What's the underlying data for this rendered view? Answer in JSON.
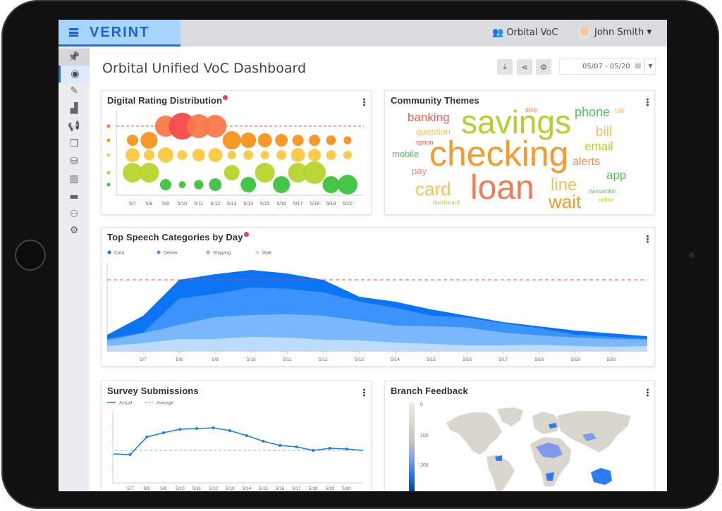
{
  "header": {
    "brand": "VERINT",
    "workspace": "Orbital VoC",
    "user": "John Smith",
    "workspace_icon": "people-icon",
    "user_icon": "avatar"
  },
  "sidebar": {
    "items": [
      {
        "name": "pin",
        "icon": "pin-icon",
        "glyph": "📌"
      },
      {
        "name": "dashboard",
        "icon": "gauge-icon",
        "glyph": "◉",
        "active": true
      },
      {
        "name": "edit",
        "icon": "pencil-icon",
        "glyph": "✎"
      },
      {
        "name": "analytics",
        "icon": "chart-icon",
        "glyph": "▟"
      },
      {
        "name": "announcements",
        "icon": "megaphone-icon",
        "glyph": "📢"
      },
      {
        "name": "integrations",
        "icon": "blocks-icon",
        "glyph": "❐"
      },
      {
        "name": "data",
        "icon": "database-icon",
        "glyph": "⛁"
      },
      {
        "name": "segments",
        "icon": "bars-people-icon",
        "glyph": "▥"
      },
      {
        "name": "files",
        "icon": "folder-icon",
        "glyph": "▬"
      },
      {
        "name": "users",
        "icon": "user-group-icon",
        "glyph": "⚇"
      },
      {
        "name": "settings",
        "icon": "gears-icon",
        "glyph": "⚙"
      }
    ]
  },
  "page": {
    "title": "Orbital Unified VoC Dashboard",
    "date_range": "05/07 - 05/20",
    "toolbar": [
      {
        "name": "download",
        "icon": "download-icon",
        "glyph": "⤓"
      },
      {
        "name": "share",
        "icon": "share-icon",
        "glyph": "⋖"
      },
      {
        "name": "settings",
        "icon": "gear-icon",
        "glyph": "⚙"
      }
    ]
  },
  "colors": {
    "accent": "#1a73e8",
    "threshold": "#f04a4a"
  },
  "cards": {
    "rating": {
      "title": "Digital Rating Distribution"
    },
    "themes": {
      "title": "Community Themes"
    },
    "speech": {
      "title": "Top Speech Categories by Day"
    },
    "survey": {
      "title": "Survey Submissions"
    },
    "branch": {
      "title": "Branch Feedback"
    }
  },
  "chart_data": [
    {
      "type": "scatter",
      "name": "rating-bubbles",
      "categories": [
        "5/7",
        "5/8",
        "5/9",
        "5/10",
        "5/11",
        "5/12",
        "5/13",
        "5/14",
        "5/15",
        "5/16",
        "5/17",
        "5/18",
        "5/19",
        "5/20"
      ],
      "rows": [
        {
          "rating": 5,
          "color": "#f8794a",
          "values": [
            0,
            0,
            56,
            90,
            72,
            64,
            0,
            0,
            0,
            0,
            0,
            0,
            0,
            0
          ]
        },
        {
          "rating": 4,
          "color": "#f7941d",
          "values": [
            16,
            36,
            0,
            0,
            0,
            0,
            42,
            30,
            25,
            20,
            16,
            16,
            12,
            8
          ]
        },
        {
          "rating": 3,
          "color": "#fdc840",
          "values": [
            25,
            14,
            30,
            12,
            20,
            25,
            9,
            12,
            9,
            12,
            25,
            20,
            12,
            9
          ]
        },
        {
          "rating": 2,
          "color": "#b7d42c",
          "values": [
            49,
            49,
            0,
            0,
            0,
            0,
            30,
            0,
            49,
            0,
            49,
            64,
            0,
            0
          ]
        },
        {
          "rating": 1,
          "color": "#3cc23f",
          "values": [
            0,
            0,
            16,
            6,
            11,
            20,
            0,
            30,
            0,
            36,
            0,
            0,
            36,
            49
          ]
        }
      ],
      "threshold_rating": 5
    },
    {
      "type": "area",
      "name": "speech-categories",
      "stacked": true,
      "x": [
        "5/6",
        "5/7",
        "5/8",
        "5/9",
        "5/10",
        "5/11",
        "5/12",
        "5/13",
        "5/14",
        "5/15",
        "5/16",
        "5/17",
        "5/18",
        "5/19",
        "5/20",
        "5/21"
      ],
      "tick_labels": [
        "5/7",
        "5/8",
        "5/9",
        "5/10",
        "5/11",
        "5/12",
        "5/13",
        "5/14",
        "5/15",
        "5/16",
        "5/17",
        "5/18",
        "5/19",
        "5/20"
      ],
      "series": [
        {
          "name": "Wait",
          "color": "#bcdcfd",
          "values": [
            6,
            10,
            16,
            16,
            19,
            18,
            15,
            14,
            11,
            9,
            7,
            7,
            8,
            6,
            5,
            6
          ]
        },
        {
          "name": "Shipping",
          "color": "#7ab8fb",
          "values": [
            8,
            14,
            20,
            31,
            31,
            33,
            34,
            28,
            24,
            25,
            25,
            18,
            13,
            12,
            11,
            9
          ]
        },
        {
          "name": "Deliver",
          "color": "#3a94fb",
          "values": [
            2,
            1,
            37,
            33,
            39,
            36,
            33,
            27,
            25,
            15,
            14,
            13,
            10,
            4,
            3,
            1
          ]
        },
        {
          "name": "Card",
          "color": "#0a74f5",
          "values": [
            6,
            24,
            27,
            28,
            25,
            22,
            18,
            7,
            9,
            9,
            3,
            2,
            3,
            6,
            5,
            4
          ]
        }
      ],
      "legend_order": [
        "Card",
        "Deliver",
        "Shipping",
        "Wait"
      ],
      "threshold": 100,
      "ylim": [
        0,
        125
      ],
      "legend": "top-left"
    },
    {
      "type": "line",
      "name": "survey-submissions",
      "x": [
        "5/6",
        "5/7",
        "5/8",
        "5/9",
        "5/10",
        "5/11",
        "5/12",
        "5/13",
        "5/14",
        "5/15",
        "5/16",
        "5/17",
        "5/18",
        "5/19",
        "5/20",
        "5/21"
      ],
      "tick_labels": [
        "5/7",
        "5/8",
        "5/9",
        "5/10",
        "5/11",
        "5/12",
        "5/13",
        "5/14",
        "5/15",
        "5/16",
        "5/17",
        "5/18",
        "5/19",
        "5/20"
      ],
      "series": [
        {
          "name": "Actual",
          "color": "#1a7cf5",
          "values": [
            20.5,
            20,
            32.5,
            35.5,
            38,
            38.5,
            39,
            37,
            33.5,
            29.5,
            26.5,
            25.5,
            23,
            24.5,
            24,
            23
          ]
        }
      ],
      "average": {
        "name": "Average",
        "value": 23,
        "color": "#7ab8fb"
      },
      "ylim": [
        0,
        50
      ],
      "grid": true,
      "legend": "top-left"
    },
    {
      "type": "heatmap",
      "name": "branch-feedback-map",
      "scale_labels": [
        "0",
        "100",
        "200"
      ],
      "scale_colors": [
        "#efeee6",
        "#c9c8c0",
        "#8fa6e6",
        "#2a7cf2",
        "#0c3f8f"
      ]
    }
  ],
  "word_cloud": [
    {
      "text": "banking",
      "color": "#f25b50"
    },
    {
      "text": "time",
      "color": "#f58a6e"
    },
    {
      "text": "phone",
      "color": "#52c25a"
    },
    {
      "text": "talk",
      "color": "#f9c05a"
    },
    {
      "text": "question",
      "color": "#f9c05a"
    },
    {
      "text": "savings",
      "color": "#b5cf2c"
    },
    {
      "text": "bill",
      "color": "#f9c05a"
    },
    {
      "text": "option",
      "color": "#f25b50"
    },
    {
      "text": "mobile",
      "color": "#52c25a"
    },
    {
      "text": "alerts",
      "color": "#f58a4e"
    },
    {
      "text": "email",
      "color": "#b5cf2c"
    },
    {
      "text": "checking",
      "color": "#f79a2e"
    },
    {
      "text": "pay",
      "color": "#f58a6e"
    },
    {
      "text": "app",
      "color": "#52c25a"
    },
    {
      "text": "card",
      "color": "#f9c05a"
    },
    {
      "text": "loan",
      "color": "#f57a52"
    },
    {
      "text": "line",
      "color": "#f9c05a"
    },
    {
      "text": "wait",
      "color": "#f79a2e"
    },
    {
      "text": "transaction",
      "color": "#52c25a"
    },
    {
      "text": "dashboard",
      "color": "#b5cf2c"
    },
    {
      "text": "online",
      "color": "#b5cf2c"
    }
  ]
}
